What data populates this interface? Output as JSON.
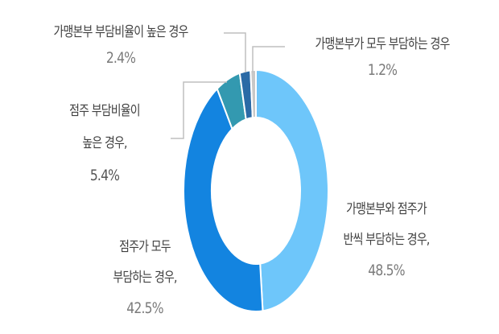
{
  "chart_data": {
    "type": "pie",
    "variant": "donut",
    "title": "",
    "start_angle_deg": 0,
    "direction": "clockwise",
    "slices": [
      {
        "label": "가맹본부와 점주가 반씩 부담하는 경우",
        "value": 48.5,
        "color": "#6EC6FA"
      },
      {
        "label": "점주가 모두 부담하는 경우",
        "value": 42.5,
        "color": "#1384E0"
      },
      {
        "label": "점주 부담비율이 높은 경우",
        "value": 5.4,
        "color": "#3399B0"
      },
      {
        "label": "가맹본부 부담비율이 높은 경우",
        "value": 2.4,
        "color": "#2B6AA6"
      },
      {
        "label": "가맹본부가 모두 부담하는 경우",
        "value": 1.2,
        "color": "#C8C8C8"
      }
    ],
    "legend": "none",
    "data_labels": true
  },
  "labels": {
    "half": {
      "line1": "가맹본부와 점주가",
      "line2": "반씩 부담하는 경우,",
      "pct": "48.5%"
    },
    "owner_all": {
      "line1": "점주가 모두",
      "line2": "부담하는 경우,",
      "pct": "42.5%"
    },
    "owner_high": {
      "line1": "점주 부담비율이",
      "line2": "높은 경우,",
      "pct": "5.4%"
    },
    "hq_high": {
      "line1": "가맹본부 부담비율이 높은 경우",
      "pct": "2.4%"
    },
    "hq_all": {
      "line1": "가맹본부가 모두 부담하는 경우",
      "pct": "1.2%"
    }
  },
  "colors": {
    "leader_line": "#BFBFBF",
    "label_text": "#404040",
    "pct_text": "#7A7A7A"
  }
}
